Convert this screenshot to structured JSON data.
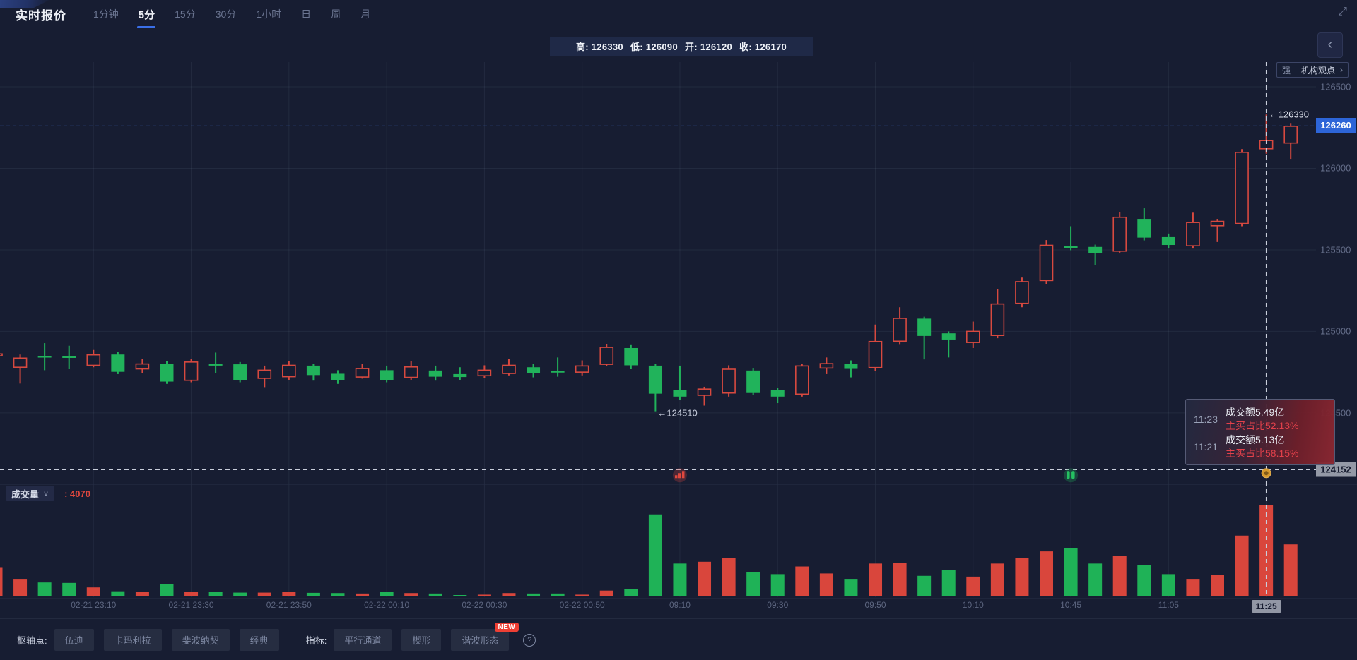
{
  "header": {
    "title": "实时报价",
    "tabs": [
      {
        "label": "1分钟",
        "active": false
      },
      {
        "label": "5分",
        "active": true
      },
      {
        "label": "15分",
        "active": false
      },
      {
        "label": "30分",
        "active": false
      },
      {
        "label": "1小时",
        "active": false
      },
      {
        "label": "日",
        "active": false
      },
      {
        "label": "周",
        "active": false
      },
      {
        "label": "月",
        "active": false
      }
    ],
    "expand_icon": "⤢"
  },
  "ohlc_bar": {
    "items": [
      {
        "label": "高:",
        "value": "126330"
      },
      {
        "label": "低:",
        "value": "126090"
      },
      {
        "label": "开:",
        "value": "126120"
      },
      {
        "label": "收:",
        "value": "126170"
      }
    ]
  },
  "side_controls": {
    "collapse_icon": "‹",
    "strength_label": "强",
    "institution_label": "机构观点",
    "chevron": "›"
  },
  "chart_data": {
    "type": "candlestick",
    "interval": "5分",
    "colors": {
      "up": "#d7493f",
      "down": "#21b35b",
      "current_price_line": "#3f6fd8",
      "crosshair": "#c9cedb",
      "grid": "rgba(160,172,205,0.09)"
    },
    "y_axis": {
      "ticks": [
        {
          "label": "126500",
          "price": 126500
        },
        {
          "label": "126000",
          "price": 126000
        },
        {
          "label": "125500",
          "price": 125500
        },
        {
          "label": "125000",
          "price": 125000
        },
        {
          "label": "124500",
          "price": 124500
        }
      ],
      "top_price": 126500,
      "bottom_price": 124000
    },
    "x_axis": {
      "labels": [
        {
          "label": "02-21 23:10",
          "time": "23:10"
        },
        {
          "label": "02-21 23:30",
          "time": "23:30"
        },
        {
          "label": "02-21 23:50",
          "time": "23:50"
        },
        {
          "label": "02-22 00:10",
          "time": "00:10"
        },
        {
          "label": "02-22 00:30",
          "time": "00:30"
        },
        {
          "label": "02-22 00:50",
          "time": "00:50"
        },
        {
          "label": "09:10",
          "time": "09:10"
        },
        {
          "label": "09:30",
          "time": "09:30"
        },
        {
          "label": "09:50",
          "time": "09:50"
        },
        {
          "label": "10:10",
          "time": "10:10"
        },
        {
          "label": "10:45",
          "time": "10:45"
        },
        {
          "label": "11:05",
          "time": "11:05"
        },
        {
          "label": "11:25",
          "time": "11:25",
          "highlighted": true
        }
      ]
    },
    "columns": [
      "time",
      "open",
      "high",
      "low",
      "close",
      "volume"
    ],
    "candles": [
      [
        "22:50",
        124850,
        124872,
        124800,
        124862,
        1300
      ],
      [
        "22:55",
        124780,
        124858,
        124680,
        124836,
        780
      ],
      [
        "23:00",
        124848,
        124928,
        124762,
        124840,
        620
      ],
      [
        "23:05",
        124846,
        124912,
        124768,
        124838,
        600
      ],
      [
        "23:10",
        124792,
        124886,
        124780,
        124856,
        400
      ],
      [
        "23:15",
        124858,
        124876,
        124738,
        124752,
        230
      ],
      [
        "23:20",
        124770,
        124832,
        124744,
        124800,
        190
      ],
      [
        "23:25",
        124800,
        124816,
        124678,
        124692,
        540
      ],
      [
        "23:30",
        124700,
        124830,
        124688,
        124812,
        210
      ],
      [
        "23:35",
        124802,
        124870,
        124744,
        124790,
        190
      ],
      [
        "23:40",
        124798,
        124812,
        124688,
        124702,
        170
      ],
      [
        "23:45",
        124712,
        124790,
        124658,
        124762,
        170
      ],
      [
        "23:50",
        124722,
        124820,
        124700,
        124792,
        210
      ],
      [
        "23:55",
        124790,
        124800,
        124698,
        124732,
        160
      ],
      [
        "00:00",
        124740,
        124762,
        124678,
        124702,
        150
      ],
      [
        "00:05",
        124720,
        124800,
        124710,
        124772,
        130
      ],
      [
        "00:10",
        124762,
        124790,
        124688,
        124700,
        190
      ],
      [
        "00:15",
        124718,
        124820,
        124700,
        124782,
        150
      ],
      [
        "00:20",
        124760,
        124790,
        124698,
        124722,
        130
      ],
      [
        "00:25",
        124738,
        124780,
        124700,
        124720,
        50
      ],
      [
        "00:30",
        124728,
        124792,
        124712,
        124762,
        80
      ],
      [
        "00:35",
        124742,
        124830,
        124730,
        124792,
        150
      ],
      [
        "00:40",
        124780,
        124800,
        124718,
        124742,
        130
      ],
      [
        "00:45",
        124756,
        124840,
        124722,
        124748,
        130
      ],
      [
        "00:50",
        124750,
        124822,
        124730,
        124788,
        80
      ],
      [
        "00:55",
        124798,
        124920,
        124788,
        124902,
        260
      ],
      [
        "09:00",
        124898,
        124916,
        124768,
        124792,
        330
      ],
      [
        "09:05",
        124790,
        124802,
        124510,
        124618,
        3640
      ],
      [
        "09:10",
        124640,
        124790,
        124578,
        124600,
        1460
      ],
      [
        "09:15",
        124608,
        124660,
        124545,
        124646,
        1540
      ],
      [
        "09:20",
        124622,
        124792,
        124600,
        124768,
        1720
      ],
      [
        "09:25",
        124760,
        124772,
        124608,
        124622,
        1090
      ],
      [
        "09:30",
        124640,
        124652,
        124560,
        124600,
        990
      ],
      [
        "09:35",
        124615,
        124800,
        124600,
        124788,
        1330
      ],
      [
        "09:40",
        124775,
        124840,
        124738,
        124802,
        1020
      ],
      [
        "09:45",
        124800,
        124822,
        124718,
        124770,
        780
      ],
      [
        "09:50",
        124778,
        125042,
        124758,
        124938,
        1460
      ],
      [
        "09:55",
        124940,
        125148,
        124918,
        125080,
        1480
      ],
      [
        "10:00",
        125078,
        125090,
        124828,
        124972,
        915
      ],
      [
        "10:05",
        124988,
        125000,
        124840,
        124950,
        1170
      ],
      [
        "10:10",
        124932,
        125060,
        124898,
        125000,
        880
      ],
      [
        "10:30",
        124975,
        125258,
        124958,
        125168,
        1460
      ],
      [
        "10:35",
        125172,
        125330,
        125148,
        125305,
        1720
      ],
      [
        "10:40",
        125312,
        125560,
        125290,
        125528,
        2000
      ],
      [
        "10:45",
        125525,
        125645,
        125498,
        125512,
        2130
      ],
      [
        "10:50",
        125518,
        125532,
        125408,
        125480,
        1460
      ],
      [
        "10:55",
        125492,
        125730,
        125478,
        125700,
        1790
      ],
      [
        "11:00",
        125690,
        125755,
        125558,
        125575,
        1380
      ],
      [
        "11:05",
        125578,
        125600,
        125508,
        125530,
        990
      ],
      [
        "11:10",
        125525,
        125728,
        125508,
        125668,
        780
      ],
      [
        "11:15",
        125648,
        125690,
        125548,
        125675,
        960
      ],
      [
        "11:20",
        125662,
        126118,
        125645,
        126098,
        2700
      ],
      [
        "11:25",
        126120,
        126330,
        126090,
        126170,
        4070
      ],
      [
        "11:30",
        126155,
        126278,
        126058,
        126258,
        2310
      ]
    ],
    "current_price": 126260,
    "current_price_label": "126260",
    "crosshair": {
      "time": "11:25",
      "price": 124152,
      "price_label": "124152",
      "time_label": "11:25"
    },
    "hovered_candle": {
      "time": "11:25",
      "open": 126120,
      "high": 126330,
      "low": 126090,
      "close": 126170,
      "volume": 4070
    },
    "annotations": {
      "high": {
        "text": "←126330",
        "price": 126330,
        "time": "11:25"
      },
      "low": {
        "text": "←124510",
        "price": 124510,
        "time": "09:05"
      }
    },
    "markers": [
      {
        "time": "09:10",
        "kind": "sell-volume-burst",
        "color": "#e0483e"
      },
      {
        "time": "10:45",
        "kind": "buy-volume-burst",
        "color": "#25c062"
      },
      {
        "time": "11:25",
        "kind": "event-dot",
        "color": "#d69a2d"
      }
    ]
  },
  "tooltip": {
    "rows": [
      {
        "time": "11:23",
        "amount": "成交额5.49亿",
        "ratio": "主买占比52.13%"
      },
      {
        "time": "11:21",
        "amount": "成交额5.13亿",
        "ratio": "主买占比58.15%"
      }
    ]
  },
  "volume_pane": {
    "label": "成交量",
    "collapse_icon": "∨",
    "value": ": 4070"
  },
  "footer": {
    "groups": [
      {
        "label": "枢轴点:",
        "buttons": [
          {
            "label": "伍迪"
          },
          {
            "label": "卡玛利拉"
          },
          {
            "label": "斐波纳契"
          },
          {
            "label": "经典"
          }
        ]
      },
      {
        "label": "指标:",
        "buttons": [
          {
            "label": "平行通道"
          },
          {
            "label": "楔形"
          },
          {
            "label": "谐波形态",
            "badge": "NEW"
          }
        ]
      }
    ],
    "help_icon": "?"
  }
}
